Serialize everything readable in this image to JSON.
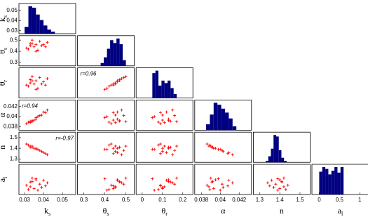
{
  "chart_data": {
    "type": "pair-plot",
    "point_color": "#ff0000",
    "bar_color": "#000080",
    "variables": [
      {
        "label": "k",
        "sub": "s",
        "lim": [
          0.027,
          0.057
        ],
        "xticks": [
          0.03,
          0.04,
          0.05
        ],
        "yticks": [
          0.03,
          0.04,
          0.05
        ],
        "bins": [
          0.03,
          0.032,
          0.034,
          0.036,
          0.038,
          0.04,
          0.042,
          0.044,
          0.046
        ],
        "counts": [
          10,
          40,
          38,
          28,
          20,
          12,
          6,
          3
        ],
        "samples": [
          0.032,
          0.034,
          0.033,
          0.036,
          0.038,
          0.035,
          0.04,
          0.031,
          0.042,
          0.037,
          0.034,
          0.039,
          0.033,
          0.041,
          0.036
        ]
      },
      {
        "label": "θ",
        "sub": "s",
        "lim": [
          0.27,
          0.54
        ],
        "xticks": [
          0.3,
          0.4,
          0.5
        ],
        "yticks": [
          0.3,
          0.4,
          0.5
        ],
        "bins": [
          0.38,
          0.395,
          0.41,
          0.425,
          0.44,
          0.455,
          0.47,
          0.485,
          0.5
        ],
        "counts": [
          5,
          15,
          30,
          45,
          40,
          48,
          38,
          10
        ],
        "samples": [
          0.42,
          0.47,
          0.45,
          0.4,
          0.49,
          0.44,
          0.46,
          0.43,
          0.48,
          0.41,
          0.5,
          0.45,
          0.47,
          0.44,
          0.46
        ]
      },
      {
        "label": "θ",
        "sub": "r",
        "lim": [
          -0.03,
          0.25
        ],
        "xticks": [
          0,
          0.1,
          0.2
        ],
        "yticks": [],
        "bins": [
          0.05,
          0.065,
          0.08,
          0.095,
          0.11,
          0.125,
          0.14,
          0.155,
          0.17
        ],
        "counts": [
          50,
          55,
          25,
          35,
          30,
          35,
          20,
          8
        ],
        "samples": [
          0.08,
          0.13,
          0.11,
          0.05,
          0.16,
          0.1,
          0.12,
          0.09,
          0.15,
          0.06,
          0.17,
          0.1,
          0.14,
          0.09,
          0.13
        ]
      },
      {
        "label": "α",
        "lim": [
          0.0373,
          0.0433
        ],
        "xticks": [
          0.038,
          0.04,
          0.042
        ],
        "yticks": [
          0.038,
          0.04,
          0.042
        ],
        "bins": [
          0.0385,
          0.0389,
          0.0393,
          0.0397,
          0.0401,
          0.0405,
          0.0409,
          0.0413,
          0.0417
        ],
        "counts": [
          15,
          40,
          70,
          65,
          55,
          45,
          30,
          10
        ],
        "samples": [
          0.0389,
          0.0392,
          0.0388,
          0.0398,
          0.0402,
          0.0393,
          0.0409,
          0.0386,
          0.0413,
          0.04,
          0.039,
          0.0403,
          0.0391,
          0.0408,
          0.0395
        ]
      },
      {
        "label": "n",
        "lim": [
          1.269,
          1.55
        ],
        "xticks": [
          1.3,
          1.4,
          1.5
        ],
        "yticks": [
          1.3,
          1.4,
          1.5
        ],
        "bins": [
          1.33,
          1.343,
          1.356,
          1.369,
          1.382,
          1.395,
          1.408,
          1.421,
          1.434
        ],
        "counts": [
          5,
          20,
          45,
          90,
          85,
          40,
          15,
          5
        ],
        "samples": [
          1.43,
          1.41,
          1.42,
          1.39,
          1.38,
          1.4,
          1.36,
          1.44,
          1.34,
          1.39,
          1.42,
          1.37,
          1.41,
          1.35,
          1.4
        ]
      },
      {
        "label": "a",
        "sub": "l",
        "lim": [
          -0.18,
          1.22
        ],
        "xticks": [
          0,
          0.5,
          1
        ],
        "yticks": [],
        "bins": [
          0,
          0.075,
          0.15,
          0.225,
          0.3,
          0.375,
          0.45,
          0.525,
          0.6
        ],
        "counts": [
          25,
          30,
          28,
          22,
          26,
          30,
          24,
          30
        ],
        "samples": [
          0.05,
          0.42,
          0.18,
          0.55,
          0.3,
          0.1,
          0.48,
          0.25,
          0.36,
          0.02,
          0.58,
          0.15,
          0.4,
          0.22,
          0.5
        ]
      }
    ],
    "annotations": [
      {
        "text": "r=0.96",
        "x": 1,
        "y": 2
      },
      {
        "text": "r=0.94",
        "x": 0,
        "y": 3
      },
      {
        "text": "r=-0.97",
        "x": 0,
        "y": 4
      }
    ]
  }
}
